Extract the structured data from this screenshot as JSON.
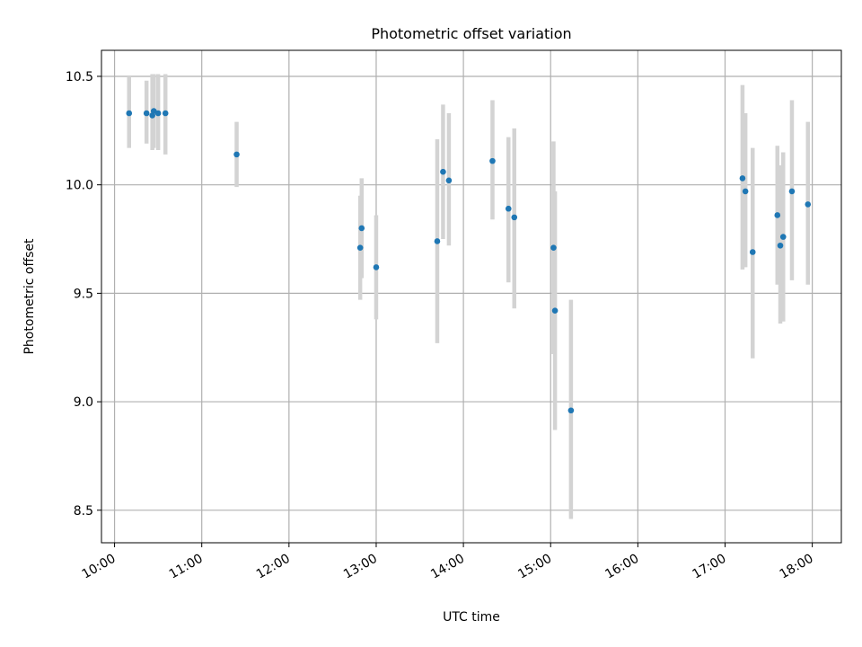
{
  "chart_data": {
    "type": "scatter",
    "title": "Photometric offset variation",
    "xlabel": "UTC time",
    "ylabel": "Photometric offset",
    "xlim": [
      "09:51",
      "18:20"
    ],
    "ylim": [
      8.35,
      10.62
    ],
    "x_ticks": [
      "10:00",
      "11:00",
      "12:00",
      "13:00",
      "14:00",
      "15:00",
      "16:00",
      "17:00",
      "18:00"
    ],
    "y_ticks": [
      8.5,
      9.0,
      9.5,
      10.0,
      10.5
    ],
    "grid": true,
    "marker_color": "#1f77b4",
    "errorbar_color": "#d3d3d3",
    "points": [
      {
        "t": "10:10",
        "y": 10.33,
        "lo": 10.17,
        "hi": 10.5
      },
      {
        "t": "10:22",
        "y": 10.33,
        "lo": 10.19,
        "hi": 10.48
      },
      {
        "t": "10:26",
        "y": 10.32,
        "lo": 10.16,
        "hi": 10.51
      },
      {
        "t": "10:27",
        "y": 10.34,
        "lo": 10.17,
        "hi": 10.51
      },
      {
        "t": "10:30",
        "y": 10.33,
        "lo": 10.16,
        "hi": 10.51
      },
      {
        "t": "10:35",
        "y": 10.33,
        "lo": 10.14,
        "hi": 10.51
      },
      {
        "t": "11:24",
        "y": 10.14,
        "lo": 9.99,
        "hi": 10.29
      },
      {
        "t": "12:49",
        "y": 9.71,
        "lo": 9.47,
        "hi": 9.95
      },
      {
        "t": "12:50",
        "y": 9.8,
        "lo": 9.57,
        "hi": 10.03
      },
      {
        "t": "13:00",
        "y": 9.62,
        "lo": 9.38,
        "hi": 9.86
      },
      {
        "t": "13:42",
        "y": 9.74,
        "lo": 9.27,
        "hi": 10.21
      },
      {
        "t": "13:46",
        "y": 10.06,
        "lo": 9.75,
        "hi": 10.37
      },
      {
        "t": "13:50",
        "y": 10.02,
        "lo": 9.72,
        "hi": 10.33
      },
      {
        "t": "14:20",
        "y": 10.11,
        "lo": 9.84,
        "hi": 10.39
      },
      {
        "t": "14:31",
        "y": 9.89,
        "lo": 9.55,
        "hi": 10.22
      },
      {
        "t": "14:35",
        "y": 9.85,
        "lo": 9.43,
        "hi": 10.26
      },
      {
        "t": "15:02",
        "y": 9.71,
        "lo": 9.22,
        "hi": 10.2
      },
      {
        "t": "15:03",
        "y": 9.42,
        "lo": 8.87,
        "hi": 9.97
      },
      {
        "t": "15:14",
        "y": 8.96,
        "lo": 8.46,
        "hi": 9.47
      },
      {
        "t": "17:12",
        "y": 10.03,
        "lo": 9.61,
        "hi": 10.46
      },
      {
        "t": "17:14",
        "y": 9.97,
        "lo": 9.62,
        "hi": 10.33
      },
      {
        "t": "17:19",
        "y": 9.69,
        "lo": 9.2,
        "hi": 10.17
      },
      {
        "t": "17:36",
        "y": 9.86,
        "lo": 9.54,
        "hi": 10.18
      },
      {
        "t": "17:38",
        "y": 9.72,
        "lo": 9.36,
        "hi": 10.09
      },
      {
        "t": "17:40",
        "y": 9.76,
        "lo": 9.37,
        "hi": 10.15
      },
      {
        "t": "17:46",
        "y": 9.97,
        "lo": 9.56,
        "hi": 10.39
      },
      {
        "t": "17:57",
        "y": 9.91,
        "lo": 9.54,
        "hi": 10.29
      }
    ]
  }
}
